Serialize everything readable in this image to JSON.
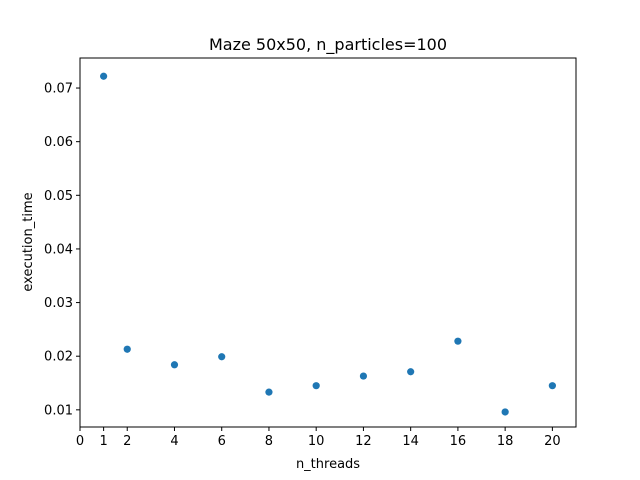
{
  "chart_data": {
    "type": "scatter",
    "title": "Maze 50x50, n_particles=100",
    "xlabel": "n_threads",
    "ylabel": "execution_time",
    "xlim": [
      0,
      21
    ],
    "ylim": [
      0.0068,
      0.0756
    ],
    "x_ticks": [
      0,
      1,
      2,
      4,
      6,
      8,
      10,
      12,
      14,
      16,
      18,
      20
    ],
    "y_ticks": [
      0.01,
      0.02,
      0.03,
      0.04,
      0.05,
      0.06,
      0.07
    ],
    "y_tick_labels": [
      "0.01",
      "0.02",
      "0.03",
      "0.04",
      "0.05",
      "0.06",
      "0.07"
    ],
    "grid": false,
    "marker_color": "#1f77b4",
    "series": [
      {
        "x": [
          1,
          2,
          4,
          6,
          8,
          10,
          12,
          14,
          16,
          18,
          20
        ],
        "y": [
          0.0722,
          0.0213,
          0.0184,
          0.0199,
          0.0133,
          0.0145,
          0.0163,
          0.0171,
          0.0228,
          0.0096,
          0.0145
        ]
      }
    ]
  }
}
